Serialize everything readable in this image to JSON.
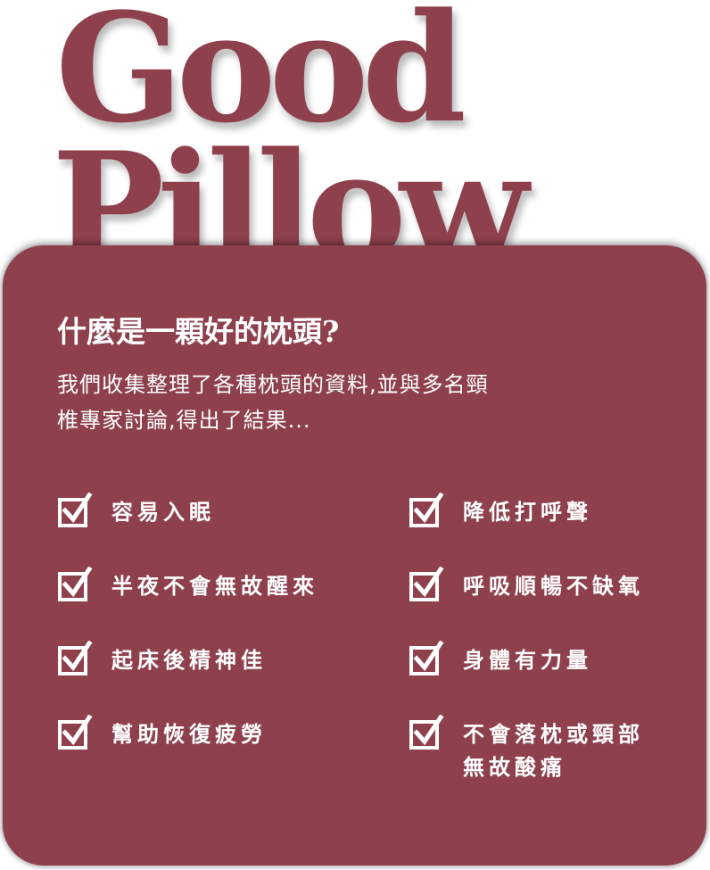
{
  "title": {
    "line1": "Good",
    "line2": "Pillow"
  },
  "card": {
    "heading": "什麼是一顆好的枕頭?",
    "intro_lines": [
      "我們收集整理了各種枕頭的資料,並與多名頸",
      "椎專家討論,得出了結果..."
    ]
  },
  "checklist": {
    "left": [
      {
        "lines": [
          "容易入眠"
        ]
      },
      {
        "lines": [
          "半夜不會無故醒來"
        ]
      },
      {
        "lines": [
          "起床後精神佳"
        ]
      },
      {
        "lines": [
          "幫助恢復疲勞"
        ]
      }
    ],
    "right": [
      {
        "lines": [
          "降低打呼聲"
        ]
      },
      {
        "lines": [
          "呼吸順暢不缺氧"
        ]
      },
      {
        "lines": [
          "身體有力量"
        ]
      },
      {
        "lines": [
          "不會落枕或頸部",
          "無故酸痛"
        ]
      }
    ],
    "icon": "checked-box-icon"
  },
  "colors": {
    "brand": "#8e414d",
    "text_on_brand": "#ffffff"
  }
}
